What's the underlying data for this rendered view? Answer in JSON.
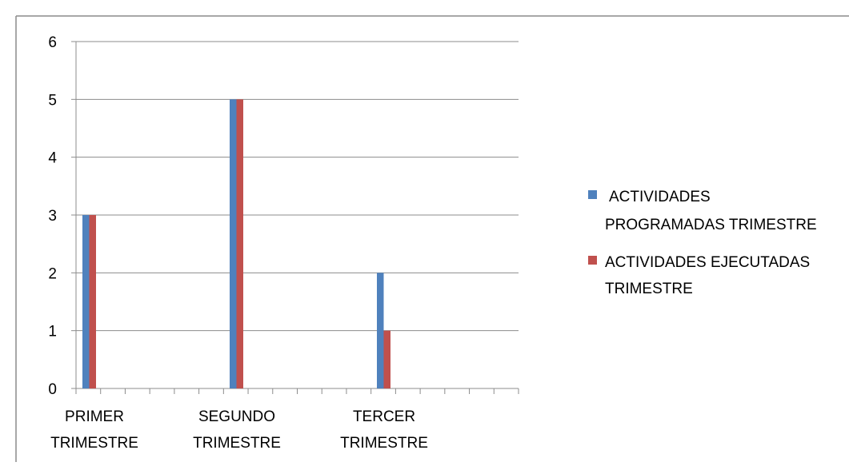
{
  "chart_data": {
    "type": "bar",
    "categories": [
      [
        "PRIMER",
        "TRIMESTRE"
      ],
      [
        "SEGUNDO",
        "TRIMESTRE"
      ],
      [
        "TERCER",
        "TRIMESTRE"
      ]
    ],
    "series": [
      {
        "name": [
          "ACTIVIDADES",
          "PROGRAMADAS TRIMESTRE"
        ],
        "values": [
          3,
          5,
          2
        ],
        "color": "#4f81bd"
      },
      {
        "name": [
          "ACTIVIDADES EJECUTADAS",
          "TRIMESTRE"
        ],
        "values": [
          3,
          5,
          1
        ],
        "color": "#c0504d"
      }
    ],
    "yticks": [
      "0",
      "1",
      "2",
      "3",
      "4",
      "5",
      "6"
    ],
    "ylim": [
      0,
      6
    ],
    "grid": true,
    "legend_position": "right",
    "title": "",
    "xlabel": "",
    "ylabel": ""
  }
}
